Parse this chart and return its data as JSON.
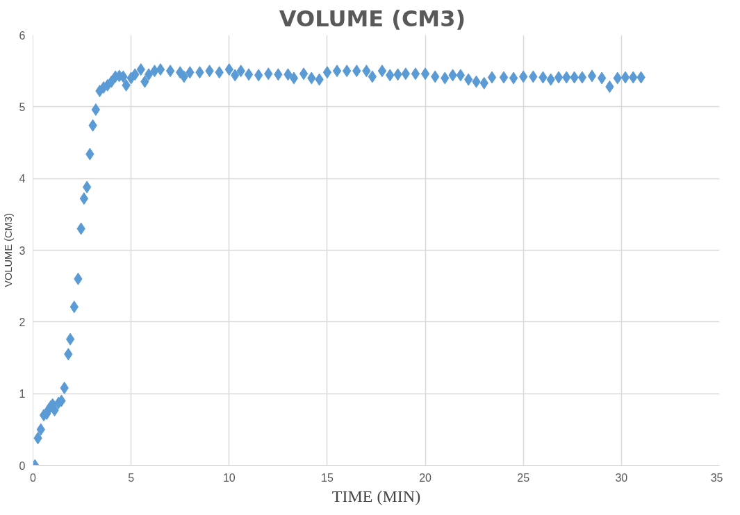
{
  "chart_data": {
    "type": "scatter",
    "title": "VOLUME  (CM3)",
    "xlabel": "TIME (MIN)",
    "ylabel": "VOLUME (CM3)",
    "marker": "diamond",
    "grid": true,
    "xlim": [
      0,
      35
    ],
    "xticks": [
      0,
      5,
      10,
      15,
      20,
      25,
      30,
      35
    ],
    "ylim": [
      0,
      6
    ],
    "yticks": [
      0,
      1,
      2,
      3,
      4,
      5,
      6
    ],
    "series": [
      {
        "color": "#5b9bd5",
        "x": [
          0.1,
          0.25,
          0.4,
          0.55,
          0.7,
          0.8,
          0.9,
          1.0,
          1.1,
          1.3,
          1.45,
          1.6,
          1.8,
          1.9,
          2.1,
          2.3,
          2.45,
          2.6,
          2.75,
          2.9,
          3.05,
          3.2,
          3.4,
          3.6,
          3.8,
          4.0,
          4.2,
          4.4,
          4.6,
          4.75,
          5.0,
          5.2,
          5.5,
          5.7,
          5.9,
          6.2,
          6.5,
          7.0,
          7.5,
          7.7,
          8.0,
          8.5,
          9.0,
          9.5,
          10.0,
          10.3,
          10.6,
          11.0,
          11.5,
          12.0,
          12.5,
          13.0,
          13.3,
          13.8,
          14.2,
          14.6,
          15.0,
          15.5,
          16.0,
          16.5,
          17.0,
          17.3,
          17.8,
          18.2,
          18.6,
          19.0,
          19.5,
          20.0,
          20.5,
          21.0,
          21.4,
          21.8,
          22.2,
          22.6,
          23.0,
          23.4,
          24.0,
          24.5,
          25.0,
          25.5,
          26.0,
          26.4,
          26.8,
          27.2,
          27.6,
          28.0,
          28.5,
          29.0,
          29.4,
          29.8,
          30.2,
          30.6,
          31.0
        ],
        "values": [
          0,
          0.38,
          0.5,
          0.7,
          0.72,
          0.78,
          0.82,
          0.85,
          0.77,
          0.87,
          0.9,
          1.08,
          1.55,
          1.76,
          2.21,
          2.6,
          3.3,
          3.72,
          3.88,
          4.34,
          4.74,
          4.96,
          5.22,
          5.27,
          5.3,
          5.35,
          5.42,
          5.43,
          5.42,
          5.3,
          5.4,
          5.45,
          5.52,
          5.35,
          5.45,
          5.5,
          5.52,
          5.5,
          5.48,
          5.42,
          5.48,
          5.48,
          5.5,
          5.48,
          5.52,
          5.44,
          5.5,
          5.45,
          5.44,
          5.46,
          5.45,
          5.45,
          5.4,
          5.46,
          5.4,
          5.38,
          5.48,
          5.5,
          5.5,
          5.5,
          5.5,
          5.42,
          5.5,
          5.44,
          5.45,
          5.46,
          5.46,
          5.46,
          5.42,
          5.4,
          5.44,
          5.44,
          5.38,
          5.35,
          5.33,
          5.41,
          5.41,
          5.4,
          5.42,
          5.42,
          5.41,
          5.38,
          5.41,
          5.41,
          5.41,
          5.41,
          5.43,
          5.4,
          5.28,
          5.4,
          5.41,
          5.41,
          5.41
        ]
      }
    ]
  }
}
